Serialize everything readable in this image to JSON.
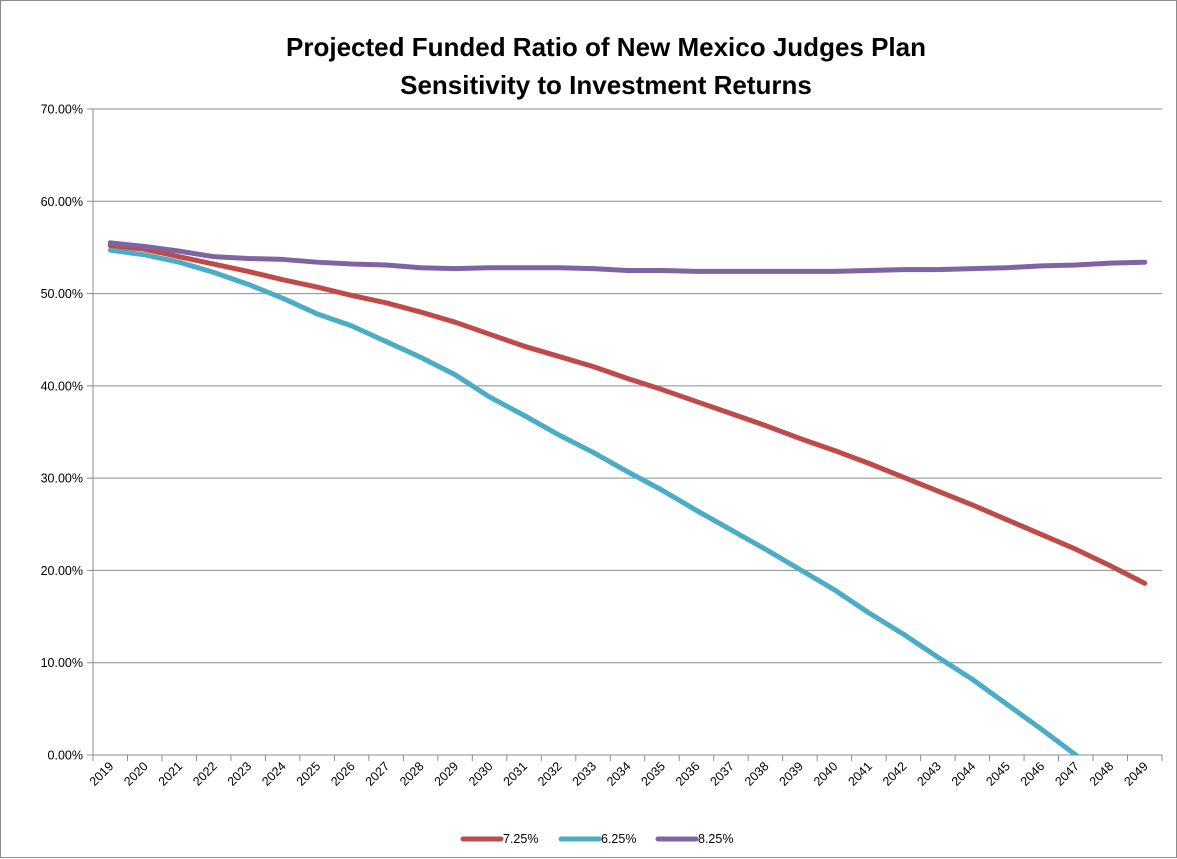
{
  "chart_data": {
    "type": "line",
    "title_lines": [
      "Projected Funded Ratio of New Mexico Judges Plan",
      "Sensitivity to Investment Returns"
    ],
    "xlabel": "",
    "ylabel": "",
    "categories": [
      "2019",
      "2020",
      "2021",
      "2022",
      "2023",
      "2024",
      "2025",
      "2026",
      "2027",
      "2028",
      "2029",
      "2030",
      "2031",
      "2032",
      "2033",
      "2034",
      "2035",
      "2036",
      "2037",
      "2038",
      "2039",
      "2040",
      "2041",
      "2042",
      "2043",
      "2044",
      "2045",
      "2046",
      "2047",
      "2048",
      "2049"
    ],
    "ylim": [
      0,
      70
    ],
    "yticks": [
      {
        "value": 0,
        "label": "0.00%"
      },
      {
        "value": 10,
        "label": "10.00%"
      },
      {
        "value": 20,
        "label": "20.00%"
      },
      {
        "value": 30,
        "label": "30.00%"
      },
      {
        "value": 40,
        "label": "40.00%"
      },
      {
        "value": 50,
        "label": "50.00%"
      },
      {
        "value": 60,
        "label": "60.00%"
      },
      {
        "value": 70,
        "label": "70.00%"
      }
    ],
    "grid": "horizontal",
    "legend_position": "bottom",
    "series": [
      {
        "name": "7.25%",
        "color": "#be4b48",
        "values": [
          55.2,
          54.8,
          54.0,
          53.2,
          52.4,
          51.5,
          50.7,
          49.8,
          49.0,
          48.0,
          46.9,
          45.6,
          44.3,
          43.2,
          42.1,
          40.8,
          39.6,
          38.3,
          37.0,
          35.7,
          34.3,
          33.0,
          31.6,
          30.1,
          28.6,
          27.1,
          25.5,
          23.9,
          22.3,
          20.5,
          18.6
        ]
      },
      {
        "name": "6.25%",
        "color": "#4bacc6",
        "values": [
          54.7,
          54.2,
          53.4,
          52.3,
          51.0,
          49.5,
          47.8,
          46.5,
          44.8,
          43.1,
          41.2,
          38.8,
          36.8,
          34.7,
          32.8,
          30.7,
          28.7,
          26.5,
          24.4,
          22.3,
          20.1,
          17.9,
          15.4,
          13.1,
          10.6,
          8.2,
          5.5,
          2.8,
          0.0,
          -2.8,
          -5.6
        ]
      },
      {
        "name": "8.25%",
        "color": "#8064a2",
        "values": [
          55.5,
          55.1,
          54.6,
          54.0,
          53.8,
          53.7,
          53.4,
          53.2,
          53.1,
          52.8,
          52.7,
          52.8,
          52.8,
          52.8,
          52.7,
          52.5,
          52.5,
          52.4,
          52.4,
          52.4,
          52.4,
          52.4,
          52.5,
          52.6,
          52.6,
          52.7,
          52.8,
          53.0,
          53.1,
          53.3,
          53.4
        ]
      }
    ]
  }
}
